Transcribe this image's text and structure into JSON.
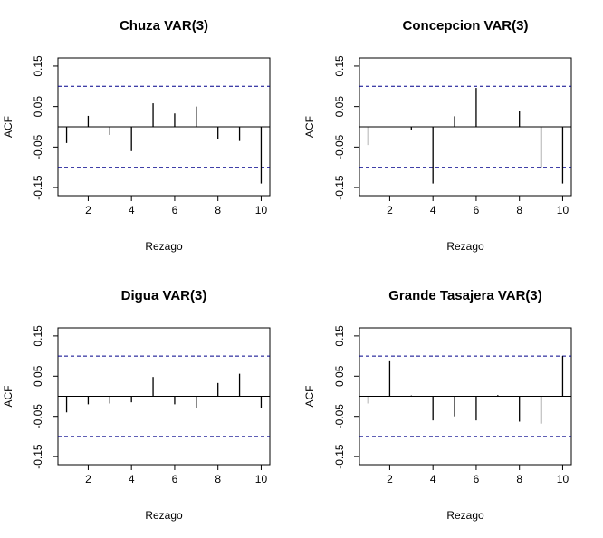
{
  "chart_data": [
    {
      "type": "bar",
      "title": "Chuza VAR(3)",
      "xlabel": "Rezago",
      "ylabel": "ACF",
      "xlim": [
        0.6,
        10.4
      ],
      "ylim": [
        -0.17,
        0.17
      ],
      "x_ticks": [
        2,
        4,
        6,
        8,
        10
      ],
      "y_ticks": [
        -0.15,
        -0.05,
        0.05,
        0.15
      ],
      "confidence_bound": 0.1,
      "x": [
        1,
        2,
        3,
        4,
        5,
        6,
        7,
        8,
        9,
        10
      ],
      "values": [
        -0.04,
        0.027,
        -0.02,
        -0.06,
        0.058,
        0.033,
        0.05,
        -0.03,
        -0.035,
        -0.14
      ]
    },
    {
      "type": "bar",
      "title": "Concepcion  VAR(3)",
      "xlabel": "Rezago",
      "ylabel": "ACF",
      "xlim": [
        0.6,
        10.4
      ],
      "ylim": [
        -0.17,
        0.17
      ],
      "x_ticks": [
        2,
        4,
        6,
        8,
        10
      ],
      "y_ticks": [
        -0.15,
        -0.05,
        0.05,
        0.15
      ],
      "confidence_bound": 0.1,
      "x": [
        1,
        2,
        3,
        4,
        5,
        6,
        7,
        8,
        9,
        10
      ],
      "values": [
        -0.045,
        0.0,
        -0.008,
        -0.14,
        0.026,
        0.096,
        0.0,
        0.038,
        -0.1,
        -0.14
      ]
    },
    {
      "type": "bar",
      "title": "Digua VAR(3)",
      "xlabel": "Rezago",
      "ylabel": "ACF",
      "xlim": [
        0.6,
        10.4
      ],
      "ylim": [
        -0.17,
        0.17
      ],
      "x_ticks": [
        2,
        4,
        6,
        8,
        10
      ],
      "y_ticks": [
        -0.15,
        -0.05,
        0.05,
        0.15
      ],
      "confidence_bound": 0.1,
      "x": [
        1,
        2,
        3,
        4,
        5,
        6,
        7,
        8,
        9,
        10
      ],
      "values": [
        -0.04,
        -0.02,
        -0.018,
        -0.015,
        0.048,
        -0.02,
        -0.03,
        0.033,
        0.056,
        -0.03
      ]
    },
    {
      "type": "bar",
      "title": "Grande Tasajera VAR(3)",
      "xlabel": "Rezago",
      "ylabel": "ACF",
      "xlim": [
        0.6,
        10.4
      ],
      "ylim": [
        -0.17,
        0.17
      ],
      "x_ticks": [
        2,
        4,
        6,
        8,
        10
      ],
      "y_ticks": [
        -0.15,
        -0.05,
        0.05,
        0.15
      ],
      "confidence_bound": 0.1,
      "x": [
        1,
        2,
        3,
        4,
        5,
        6,
        7,
        8,
        9,
        10
      ],
      "values": [
        -0.018,
        0.087,
        0.002,
        -0.06,
        -0.05,
        -0.06,
        0.003,
        -0.063,
        -0.068,
        0.1
      ]
    }
  ],
  "style": {
    "bound_color": "#00008b",
    "bar_color": "#000000",
    "axis_color": "#000000"
  }
}
